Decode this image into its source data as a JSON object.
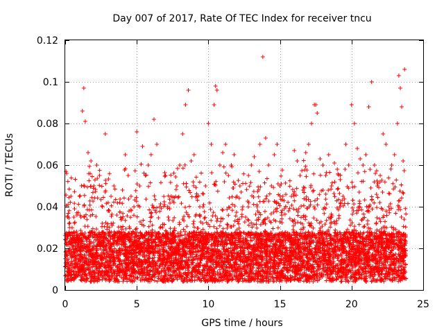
{
  "chart_data": {
    "type": "scatter",
    "title": "Day 007 of 2017, Rate Of TEC Index for receiver tncu",
    "xlabel": "GPS time / hours",
    "ylabel": "ROTI / TECUs",
    "xlim": [
      0,
      25
    ],
    "ylim": [
      0,
      0.12
    ],
    "xticks": [
      0,
      5,
      10,
      15,
      20,
      25
    ],
    "xtick_labels": [
      "0",
      "5",
      "10",
      "15",
      "20",
      "25"
    ],
    "yticks": [
      0,
      0.02,
      0.04,
      0.06,
      0.08,
      0.1,
      0.12
    ],
    "ytick_labels": [
      "0",
      "0.02",
      "0.04",
      "0.06",
      "0.08",
      "0.1",
      "0.12"
    ],
    "grid": true,
    "marker": "plus",
    "color": "#ff0000",
    "series": [
      {
        "name": "ROTI",
        "notes": "dense band ~0.005-0.03 across 0-23.8 h; representative points",
        "x": [
          0.1,
          0.2,
          0.3,
          0.4,
          0.6,
          0.8,
          1.0,
          1.2,
          1.3,
          1.4,
          1.6,
          1.8,
          2.0,
          2.2,
          2.4,
          2.6,
          2.8,
          3.0,
          3.2,
          3.4,
          3.6,
          3.8,
          4.0,
          4.2,
          4.4,
          4.6,
          4.8,
          5.0,
          5.2,
          5.4,
          5.6,
          5.8,
          6.0,
          6.2,
          6.4,
          6.6,
          6.8,
          7.0,
          7.2,
          7.4,
          7.6,
          7.8,
          8.0,
          8.2,
          8.4,
          8.6,
          8.8,
          9.0,
          9.2,
          9.4,
          9.6,
          9.8,
          10.0,
          10.2,
          10.4,
          10.5,
          10.6,
          10.8,
          11.0,
          11.2,
          11.4,
          11.6,
          11.8,
          12.0,
          12.2,
          12.4,
          12.6,
          12.8,
          13.0,
          13.2,
          13.4,
          13.6,
          13.8,
          14.0,
          14.2,
          14.4,
          14.6,
          14.8,
          15.0,
          15.2,
          15.4,
          15.6,
          15.8,
          16.0,
          16.2,
          16.4,
          16.6,
          16.8,
          17.0,
          17.2,
          17.4,
          17.5,
          17.6,
          17.8,
          18.0,
          18.2,
          18.4,
          18.6,
          18.8,
          19.0,
          19.2,
          19.4,
          19.6,
          19.8,
          20.0,
          20.2,
          20.4,
          20.6,
          20.8,
          21.0,
          21.2,
          21.4,
          21.6,
          21.8,
          22.0,
          22.2,
          22.4,
          22.6,
          22.8,
          23.0,
          23.2,
          23.3,
          23.4,
          23.5,
          23.6,
          23.7
        ],
        "y": [
          0.056,
          0.041,
          0.03,
          0.022,
          0.035,
          0.028,
          0.045,
          0.086,
          0.097,
          0.081,
          0.066,
          0.062,
          0.05,
          0.06,
          0.055,
          0.04,
          0.075,
          0.038,
          0.045,
          0.05,
          0.036,
          0.042,
          0.048,
          0.065,
          0.055,
          0.045,
          0.04,
          0.076,
          0.05,
          0.069,
          0.055,
          0.06,
          0.065,
          0.082,
          0.07,
          0.04,
          0.03,
          0.055,
          0.035,
          0.045,
          0.042,
          0.05,
          0.06,
          0.075,
          0.089,
          0.096,
          0.062,
          0.065,
          0.045,
          0.04,
          0.032,
          0.05,
          0.08,
          0.07,
          0.089,
          0.098,
          0.096,
          0.06,
          0.066,
          0.07,
          0.055,
          0.06,
          0.065,
          0.045,
          0.05,
          0.04,
          0.035,
          0.055,
          0.06,
          0.064,
          0.04,
          0.07,
          0.112,
          0.073,
          0.06,
          0.05,
          0.065,
          0.07,
          0.05,
          0.045,
          0.04,
          0.038,
          0.045,
          0.067,
          0.062,
          0.055,
          0.048,
          0.066,
          0.07,
          0.08,
          0.089,
          0.089,
          0.085,
          0.063,
          0.06,
          0.055,
          0.065,
          0.05,
          0.061,
          0.058,
          0.04,
          0.045,
          0.07,
          0.06,
          0.089,
          0.08,
          0.068,
          0.063,
          0.06,
          0.065,
          0.088,
          0.1,
          0.06,
          0.05,
          0.055,
          0.075,
          0.07,
          0.04,
          0.06,
          0.065,
          0.08,
          0.103,
          0.097,
          0.088,
          0.062,
          0.106
        ]
      }
    ]
  }
}
